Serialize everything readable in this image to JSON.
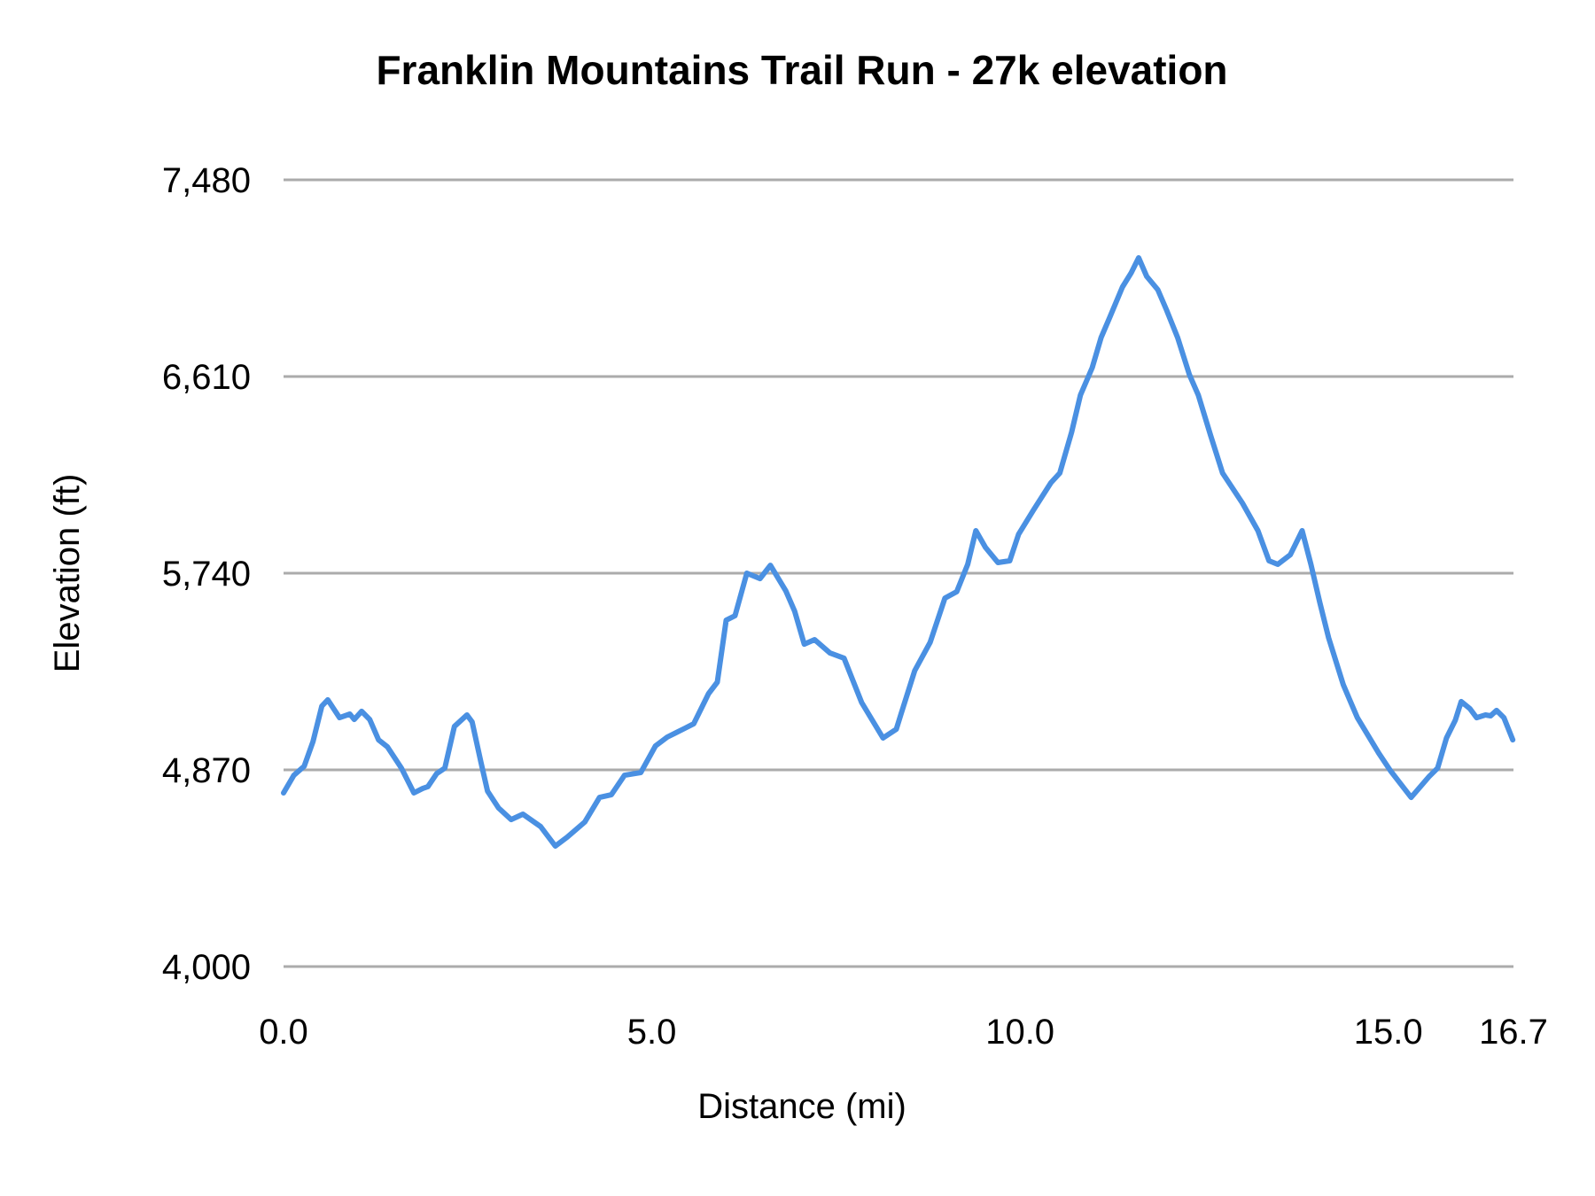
{
  "chart_data": {
    "type": "line",
    "title": "Franklin Mountains Trail Run - 27k elevation",
    "xlabel": "Distance (mi)",
    "ylabel": "Elevation (ft)",
    "xlim": [
      0,
      16.7
    ],
    "ylim": [
      4000,
      7480
    ],
    "x_ticks": [
      0.0,
      5.0,
      10.0,
      15.0,
      16.7
    ],
    "x_tick_labels": [
      "0.0",
      "5.0",
      "10.0",
      "15.0",
      "16.7"
    ],
    "y_ticks": [
      4000,
      4870,
      5740,
      6610,
      7480
    ],
    "y_tick_labels": [
      "4,000",
      "4,870",
      "5,740",
      "6,610",
      "7,480"
    ],
    "grid": "horizontal",
    "legend": "none",
    "series": [
      {
        "name": "Elevation",
        "color": "#4a90e2",
        "x": [
          0.0,
          0.14,
          0.28,
          0.4,
          0.52,
          0.6,
          0.76,
          0.9,
          0.96,
          1.06,
          1.17,
          1.29,
          1.41,
          1.6,
          1.77,
          1.89,
          1.96,
          2.08,
          2.19,
          2.32,
          2.49,
          2.56,
          2.68,
          2.77,
          2.92,
          3.09,
          3.25,
          3.49,
          3.69,
          3.85,
          4.09,
          4.29,
          4.45,
          4.63,
          4.85,
          5.05,
          5.21,
          5.45,
          5.57,
          5.77,
          5.89,
          6.01,
          6.13,
          6.29,
          6.47,
          6.61,
          6.82,
          6.94,
          7.07,
          7.21,
          7.42,
          7.61,
          7.85,
          8.14,
          8.32,
          8.38,
          8.57,
          8.78,
          8.98,
          9.14,
          9.29,
          9.4,
          9.53,
          9.7,
          9.86,
          9.98,
          10.18,
          10.42,
          10.54,
          10.7,
          10.82,
          10.98,
          11.1,
          11.22,
          11.39,
          11.51,
          11.61,
          11.72,
          11.87,
          11.99,
          12.14,
          12.3,
          12.42,
          12.59,
          12.75,
          13.02,
          13.23,
          13.38,
          13.5,
          13.67,
          13.83,
          13.95,
          14.07,
          14.19,
          14.39,
          14.58,
          14.87,
          15.03,
          15.31,
          15.55,
          15.67,
          15.79,
          15.91,
          15.99,
          16.11,
          16.2,
          16.32,
          16.39,
          16.47,
          16.57,
          16.69
        ],
        "values": [
          4768,
          4846,
          4886,
          4995,
          5152,
          5180,
          5101,
          5117,
          5093,
          5129,
          5093,
          5003,
          4972,
          4878,
          4768,
          4788,
          4796,
          4854,
          4878,
          5062,
          5113,
          5082,
          4905,
          4776,
          4701,
          4650,
          4674,
          4619,
          4533,
          4572,
          4639,
          4748,
          4760,
          4846,
          4858,
          4976,
          5015,
          5054,
          5074,
          5207,
          5258,
          5532,
          5552,
          5740,
          5716,
          5775,
          5662,
          5572,
          5426,
          5446,
          5387,
          5364,
          5168,
          5011,
          5050,
          5113,
          5309,
          5434,
          5630,
          5658,
          5779,
          5928,
          5854,
          5787,
          5795,
          5912,
          6018,
          6140,
          6183,
          6363,
          6528,
          6649,
          6782,
          6873,
          7006,
          7069,
          7135,
          7053,
          6994,
          6904,
          6782,
          6618,
          6528,
          6347,
          6183,
          6050,
          5928,
          5795,
          5779,
          5822,
          5928,
          5779,
          5611,
          5454,
          5246,
          5101,
          4944,
          4866,
          4748,
          4839,
          4878,
          5011,
          5089,
          5172,
          5140,
          5101,
          5113,
          5109,
          5133,
          5101,
          5003
        ]
      }
    ]
  }
}
